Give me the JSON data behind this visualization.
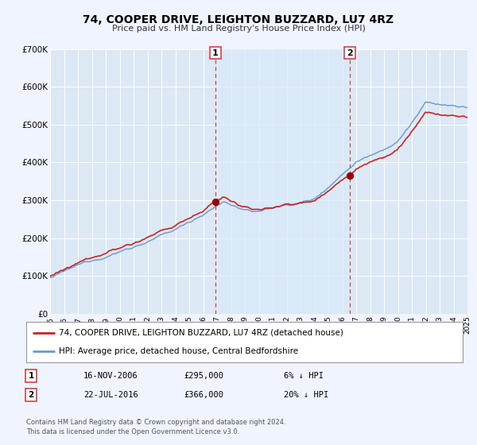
{
  "title": "74, COOPER DRIVE, LEIGHTON BUZZARD, LU7 4RZ",
  "subtitle": "Price paid vs. HM Land Registry's House Price Index (HPI)",
  "ylim": [
    0,
    700000
  ],
  "yticks": [
    0,
    100000,
    200000,
    300000,
    400000,
    500000,
    600000,
    700000
  ],
  "ytick_labels": [
    "£0",
    "£100K",
    "£200K",
    "£300K",
    "£400K",
    "£500K",
    "£600K",
    "£700K"
  ],
  "background_color": "#f0f4ff",
  "plot_bg_color": "#dce8f5",
  "shade_color": "#daeaf8",
  "grid_color": "#ffffff",
  "sale1_date": 2006.88,
  "sale1_price": 295000,
  "sale2_date": 2016.55,
  "sale2_price": 366000,
  "marker_color": "#990000",
  "vline_color": "#cc4444",
  "hpi_line_color": "#6699cc",
  "price_line_color": "#cc2222",
  "legend_label_price": "74, COOPER DRIVE, LEIGHTON BUZZARD, LU7 4RZ (detached house)",
  "legend_label_hpi": "HPI: Average price, detached house, Central Bedfordshire",
  "annotation1_date": "16-NOV-2006",
  "annotation1_price": "£295,000",
  "annotation1_rel": "6% ↓ HPI",
  "annotation2_date": "22-JUL-2016",
  "annotation2_price": "£366,000",
  "annotation2_rel": "20% ↓ HPI",
  "footer1": "Contains HM Land Registry data © Crown copyright and database right 2024.",
  "footer2": "This data is licensed under the Open Government Licence v3.0.",
  "xmin": 1995,
  "xmax": 2025
}
